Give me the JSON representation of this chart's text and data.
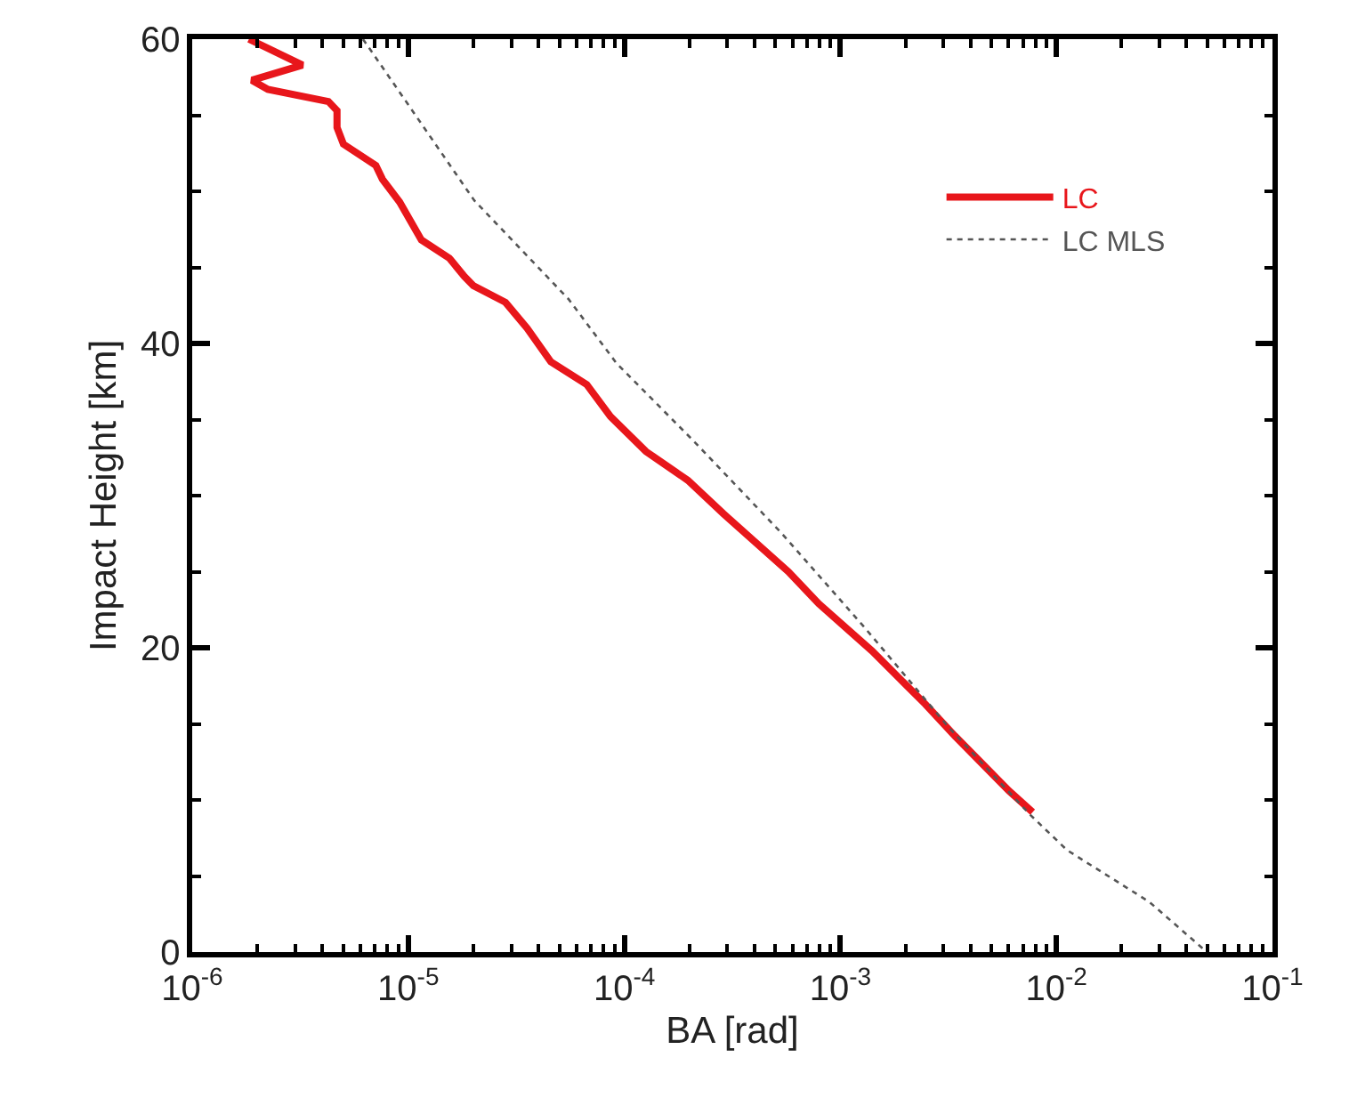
{
  "chart_data": {
    "type": "line",
    "xlabel": "BA [rad]",
    "ylabel": "Impact Height [km]",
    "log": "x",
    "xlim": [
      1e-06,
      0.1
    ],
    "xticks": [
      {
        "value": 1e-06,
        "label": "10$^{-6}$"
      },
      {
        "value": 1e-05,
        "label": "10$^{-5}$"
      },
      {
        "value": 0.0001,
        "label": "10$^{-4}$"
      },
      {
        "value": 0.001,
        "label": "10$^{-3}$"
      },
      {
        "value": 0.01,
        "label": "10$^{-2}$"
      },
      {
        "value": 0.1,
        "label": "10$^{-1}$"
      }
    ],
    "ylim": [
      0,
      60
    ],
    "yticks": [
      0,
      20,
      40,
      60
    ],
    "legend": "top right",
    "marker": "none",
    "series": [
      {
        "name": "LC",
        "color": "#e8161b",
        "line_style": "solid",
        "x": [
          1.83e-06,
          3.24e-06,
          1.89e-06,
          2.24e-06,
          4.27e-06,
          4.68e-06,
          4.68e-06,
          5.01e-06,
          7.08e-06,
          7.59e-06,
          9.12e-06,
          1.15e-05,
          1.55e-05,
          1.82e-05,
          2e-05,
          2.82e-05,
          3.55e-05,
          4.57e-05,
          6.7e-05,
          8.63e-05,
          0.000126,
          0.000197,
          0.000288,
          0.000575,
          0.000794,
          0.0014,
          0.00247,
          0.00339,
          0.00603,
          0.00776
        ],
        "values": [
          60,
          58.3,
          57.3,
          56.7,
          55.9,
          55.3,
          54.2,
          53.1,
          51.7,
          50.8,
          49.3,
          46.8,
          45.6,
          44.4,
          43.8,
          42.7,
          41.0,
          38.8,
          37.3,
          35.2,
          32.9,
          31.0,
          28.8,
          25.0,
          22.9,
          19.8,
          16.3,
          14.2,
          10.6,
          9.2
        ]
      },
      {
        "name": "LC MLS",
        "color": "#555555",
        "line_style": "dotted",
        "x": [
          6.17e-06,
          6.46e-06,
          2.02e-05,
          5.53e-05,
          9.2e-05,
          0.000209,
          0.000537,
          0.0013,
          0.00316,
          0.00759,
          0.0112,
          0.0269,
          0.0479
        ],
        "values": [
          60,
          59.6,
          49.4,
          42.9,
          38.7,
          33.6,
          27.5,
          21.3,
          14.8,
          9.0,
          6.7,
          3.3,
          0.2
        ]
      }
    ]
  }
}
